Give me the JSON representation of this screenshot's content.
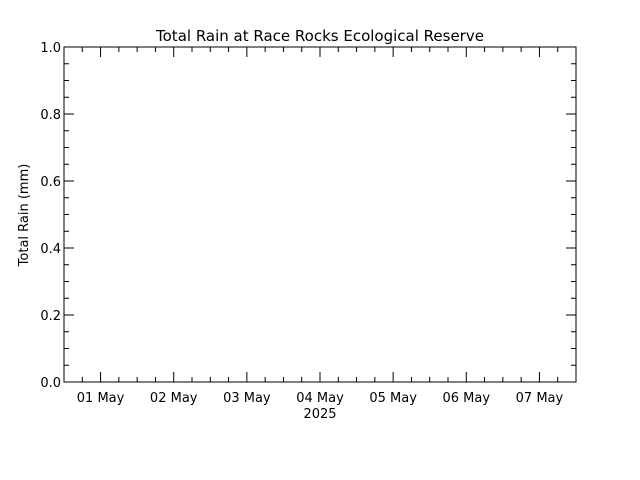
{
  "chart_data": {
    "type": "line",
    "title": "Total Rain at Race Rocks Ecological Reserve",
    "xlabel": "2025",
    "ylabel": "Total Rain (mm)",
    "x_start": "2025-04-30 12:00",
    "x_end": "2025-05-07 12:00",
    "categories": [
      "01 May",
      "02 May",
      "03 May",
      "04 May",
      "05 May",
      "06 May",
      "07 May"
    ],
    "ylim": [
      0.0,
      1.0
    ],
    "y_ticks": [
      "0.0",
      "0.2",
      "0.4",
      "0.6",
      "0.8",
      "1.0"
    ],
    "grid": false,
    "series": []
  },
  "colors": {
    "axis": "#000000",
    "background": "#ffffff"
  }
}
